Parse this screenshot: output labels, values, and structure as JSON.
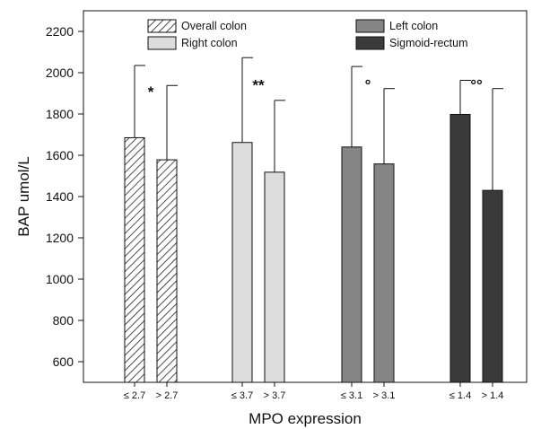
{
  "chart_data": {
    "type": "bar",
    "xlabel": "MPO expression",
    "ylabel": "BAP umol/L",
    "ylim": [
      500,
      2300
    ],
    "yticks": [
      600,
      800,
      1000,
      1200,
      1400,
      1600,
      1800,
      2000,
      2200
    ],
    "grid": false,
    "legend_position": "top",
    "groups": [
      {
        "series": "Overall colon",
        "pattern": "hatch",
        "color": "#ffffff",
        "categories": [
          "≤ 2.7",
          "> 2.7"
        ],
        "values": [
          1685,
          1578
        ],
        "error_upper": [
          2035,
          1938
        ],
        "significance": "*"
      },
      {
        "series": "Right colon",
        "pattern": "solid",
        "color": "#dcdcdc",
        "categories": [
          "≤ 3.7",
          "> 3.7"
        ],
        "values": [
          1662,
          1518
        ],
        "error_upper": [
          2073,
          1866
        ],
        "significance": "**"
      },
      {
        "series": "Left colon",
        "pattern": "solid",
        "color": "#858585",
        "categories": [
          "≤ 3.1",
          "> 3.1"
        ],
        "values": [
          1640,
          1558
        ],
        "error_upper": [
          2030,
          1923
        ],
        "significance": "°"
      },
      {
        "series": "Sigmoid-rectum",
        "pattern": "solid",
        "color": "#3a3a3a",
        "categories": [
          "≤ 1.4",
          "> 1.4"
        ],
        "values": [
          1798,
          1430
        ],
        "error_upper": [
          1963,
          1923
        ],
        "significance": "°°"
      }
    ]
  }
}
